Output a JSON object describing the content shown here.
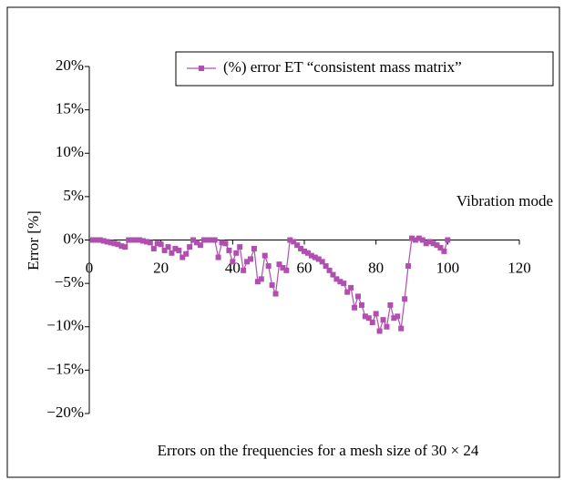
{
  "chart_data": {
    "type": "line",
    "caption": "Errors on the frequencies for a mesh size of 30 × 24",
    "y_label": "Error [%]",
    "x_label": "Vibration mode",
    "xlim": [
      0,
      120
    ],
    "xticks": [
      0,
      20,
      40,
      60,
      80,
      100,
      120
    ],
    "ylim": [
      -20,
      20
    ],
    "yticks": [
      {
        "value": 20,
        "label": "20%"
      },
      {
        "value": 15,
        "label": "15%"
      },
      {
        "value": 10,
        "label": "10%"
      },
      {
        "value": 5,
        "label": "5%"
      },
      {
        "value": 0,
        "label": "0%"
      },
      {
        "value": -5,
        "label": "−5%"
      },
      {
        "value": -10,
        "label": "−10%"
      },
      {
        "value": -15,
        "label": "−15%"
      },
      {
        "value": -20,
        "label": "−20%"
      }
    ],
    "x": [
      1,
      2,
      3,
      4,
      5,
      6,
      7,
      8,
      9,
      10,
      11,
      12,
      13,
      14,
      15,
      16,
      17,
      18,
      19,
      20,
      21,
      22,
      23,
      24,
      25,
      26,
      27,
      28,
      29,
      30,
      31,
      32,
      33,
      34,
      35,
      36,
      37,
      38,
      39,
      40,
      41,
      42,
      43,
      44,
      45,
      46,
      47,
      48,
      49,
      50,
      51,
      52,
      53,
      54,
      55,
      56,
      57,
      58,
      59,
      60,
      61,
      62,
      63,
      64,
      65,
      66,
      67,
      68,
      69,
      70,
      71,
      72,
      73,
      74,
      75,
      76,
      77,
      78,
      79,
      80,
      81,
      82,
      83,
      84,
      85,
      86,
      87,
      88,
      89,
      90,
      91,
      92,
      93,
      94,
      95,
      96,
      97,
      98,
      99,
      100
    ],
    "series": [
      {
        "name": "(%) error ET “consistent mass matrix”",
        "color": "#b04fb0",
        "values": [
          0,
          0,
          0,
          -0.1,
          -0.2,
          -0.3,
          -0.4,
          -0.5,
          -0.7,
          -0.8,
          0,
          0,
          0,
          0,
          -0.1,
          -0.2,
          -0.3,
          -1.0,
          -0.4,
          -0.5,
          -1.2,
          -0.8,
          -1.5,
          -1.0,
          -1.2,
          -2.0,
          -1.6,
          -0.8,
          0,
          -0.3,
          -0.6,
          0,
          0,
          0,
          0,
          -2.0,
          -0.3,
          -0.4,
          -1.2,
          -2.5,
          -1.5,
          -0.8,
          -3.5,
          -2.5,
          -2.2,
          -1.0,
          -4.8,
          -4.5,
          -1.8,
          -3.0,
          -5.2,
          -6.2,
          -2.8,
          -3.2,
          -3.5,
          0,
          -0.2,
          -0.6,
          -1.0,
          -1.3,
          -1.5,
          -1.8,
          -2.0,
          -2.2,
          -2.5,
          -3.0,
          -3.5,
          -4.0,
          -4.5,
          -4.8,
          -5.0,
          -6.0,
          -5.5,
          -7.8,
          -6.5,
          -7.5,
          -8.8,
          -9.0,
          -9.5,
          -8.5,
          -10.5,
          -9.2,
          -10.0,
          -7.5,
          -9.0,
          -8.8,
          -10.2,
          -6.8,
          -3.0,
          0.2,
          0,
          0.2,
          0,
          -0.4,
          -0.2,
          -0.4,
          -0.6,
          -0.9,
          -1.3,
          0
        ]
      }
    ]
  }
}
